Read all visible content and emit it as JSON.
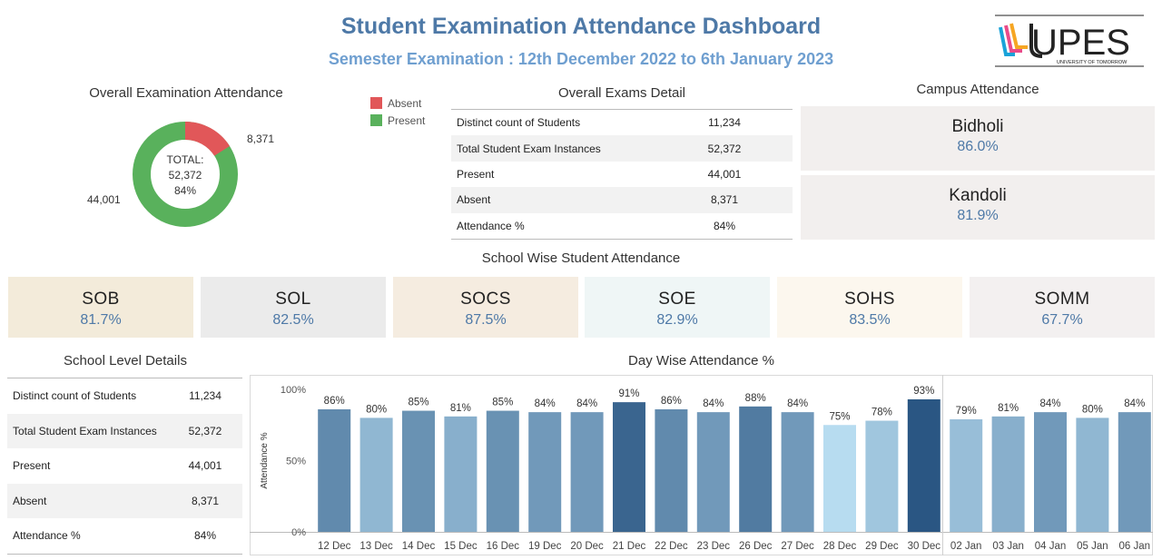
{
  "header": {
    "title": "Student Examination Attendance Dashboard",
    "subtitle": "Semester Examination : 12th December 2022 to 6th January 2023"
  },
  "logo": {
    "text": "UPES",
    "tagline": "UNIVERSITY OF TOMORROW"
  },
  "colors": {
    "absent": "#e15759",
    "present": "#59b15c",
    "accent": "#4e79a7",
    "campus_bg": "#f2efee"
  },
  "overall": {
    "title": "Overall Examination Attendance",
    "absent_value": "8,371",
    "present_value": "44,001",
    "center_line1": "TOTAL:",
    "center_line2": "52,372",
    "center_line3": "84%",
    "absent": 8371,
    "present": 44001
  },
  "legend": {
    "absent": "Absent",
    "present": "Present"
  },
  "exams_detail": {
    "title": "Overall Exams Detail",
    "rows": [
      {
        "label": "Distinct count of Students",
        "value": "11,234"
      },
      {
        "label": "Total Student Exam Instances",
        "value": "52,372"
      },
      {
        "label": "Present",
        "value": "44,001"
      },
      {
        "label": "Absent",
        "value": "8,371"
      },
      {
        "label": "Attendance %",
        "value": "84%"
      }
    ]
  },
  "campus": {
    "title": "Campus Attendance",
    "items": [
      {
        "name": "Bidholi",
        "pct": "86.0%"
      },
      {
        "name": "Kandoli",
        "pct": "81.9%"
      }
    ]
  },
  "schools": {
    "title": "School Wise Student Attendance",
    "items": [
      {
        "name": "SOB",
        "pct": "81.7%",
        "bg": "#f3ebda"
      },
      {
        "name": "SOL",
        "pct": "82.5%",
        "bg": "#ebebeb"
      },
      {
        "name": "SOCS",
        "pct": "87.5%",
        "bg": "#f5ece0"
      },
      {
        "name": "SOE",
        "pct": "82.9%",
        "bg": "#eff6f6"
      },
      {
        "name": "SOHS",
        "pct": "83.5%",
        "bg": "#fcf7ee"
      },
      {
        "name": "SOMM",
        "pct": "67.7%",
        "bg": "#f3f0f0"
      }
    ]
  },
  "school_level": {
    "title": "School Level Details",
    "rows": [
      {
        "label": "Distinct count of Students",
        "value": "11,234"
      },
      {
        "label": "Total Student Exam Instances",
        "value": "52,372"
      },
      {
        "label": "Present",
        "value": "44,001"
      },
      {
        "label": "Absent",
        "value": "8,371"
      },
      {
        "label": "Attendance %",
        "value": "84%"
      }
    ]
  },
  "day_wise": {
    "title": "Day Wise Attendance %"
  },
  "chart_data": {
    "type": "bar",
    "title": "Day Wise Attendance %",
    "ylabel": "Attendance %",
    "ylim": [
      0,
      100
    ],
    "yticks": [
      "0%",
      "50%",
      "100%"
    ],
    "panels": [
      {
        "categories": [
          "12 Dec",
          "13 Dec",
          "14 Dec",
          "15 Dec",
          "16 Dec",
          "19 Dec",
          "20 Dec",
          "21 Dec",
          "22 Dec",
          "23 Dec",
          "26 Dec",
          "27 Dec",
          "28 Dec",
          "29 Dec",
          "30 Dec"
        ],
        "values": [
          86,
          80,
          85,
          81,
          85,
          84,
          84,
          91,
          86,
          84,
          88,
          84,
          75,
          78,
          93
        ]
      },
      {
        "categories": [
          "02 Jan",
          "03 Jan",
          "04 Jan",
          "05 Jan",
          "06 Jan"
        ],
        "values": [
          79,
          81,
          84,
          80,
          84
        ]
      }
    ],
    "color_scale": [
      "#b7dcf0",
      "#2a5683"
    ]
  }
}
